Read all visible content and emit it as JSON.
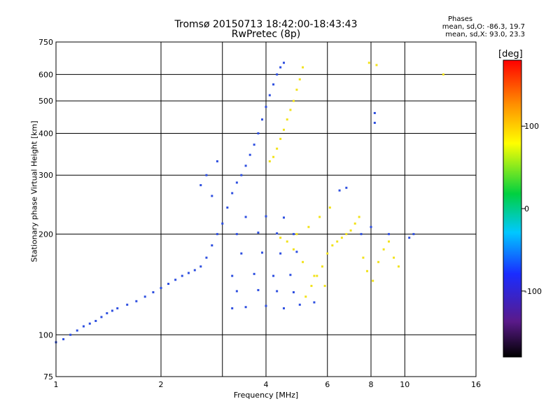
{
  "header": {
    "title": "Tromsø 20150713 18:42:00-18:43:43",
    "subtitle": "RwPretec (8p)",
    "stats_heading": "Phases",
    "stats_o": "mean, sd,O: -86.3, 19.7",
    "stats_x": "mean, sd,X:  93.0, 23.3"
  },
  "colorbar": {
    "title": "[deg]",
    "ticks": [
      100,
      0,
      -100
    ],
    "range": [
      -180,
      180
    ],
    "scale": "rainbow (black-purple-blue-cyan-green-yellow-orange-red)"
  },
  "chart_data": {
    "type": "scatter",
    "title": "Tromsø 20150713 18:42:00-18:43:43",
    "subtitle": "RwPretec (8p)",
    "xlabel": "Frequency [MHz]",
    "ylabel": "Stationary phase Virtual Height [km]",
    "xscale": "log",
    "yscale": "log",
    "xlim": [
      1,
      16
    ],
    "ylim": [
      75,
      750
    ],
    "x_ticks": [
      1,
      2,
      4,
      6,
      8,
      10,
      16
    ],
    "y_ticks": [
      75,
      100,
      200,
      300,
      400,
      500,
      600,
      750
    ],
    "x_grid": [
      2,
      3,
      4,
      6,
      8,
      10
    ],
    "y_grid": [
      100,
      200,
      300,
      400,
      500,
      600
    ],
    "color_variable": "phase [deg]",
    "series": [
      {
        "name": "O",
        "color": "#2e4fe0",
        "points": [
          [
            1.0,
            95
          ],
          [
            1.05,
            97
          ],
          [
            1.1,
            100
          ],
          [
            1.15,
            103
          ],
          [
            1.2,
            106
          ],
          [
            1.25,
            108
          ],
          [
            1.3,
            110
          ],
          [
            1.35,
            113
          ],
          [
            1.4,
            116
          ],
          [
            1.45,
            118
          ],
          [
            1.5,
            120
          ],
          [
            1.6,
            123
          ],
          [
            1.7,
            126
          ],
          [
            1.8,
            130
          ],
          [
            1.9,
            134
          ],
          [
            2.0,
            138
          ],
          [
            2.1,
            142
          ],
          [
            2.2,
            146
          ],
          [
            2.3,
            150
          ],
          [
            2.4,
            153
          ],
          [
            2.5,
            156
          ],
          [
            2.6,
            160
          ],
          [
            2.7,
            170
          ],
          [
            2.8,
            185
          ],
          [
            2.9,
            200
          ],
          [
            3.0,
            215
          ],
          [
            3.1,
            240
          ],
          [
            3.2,
            265
          ],
          [
            3.3,
            285
          ],
          [
            3.4,
            300
          ],
          [
            3.5,
            320
          ],
          [
            3.6,
            345
          ],
          [
            3.7,
            370
          ],
          [
            3.8,
            400
          ],
          [
            3.9,
            440
          ],
          [
            4.0,
            480
          ],
          [
            4.1,
            520
          ],
          [
            4.2,
            560
          ],
          [
            4.3,
            600
          ],
          [
            4.4,
            630
          ],
          [
            4.5,
            650
          ],
          [
            3.2,
            120
          ],
          [
            3.5,
            121
          ],
          [
            4.0,
            122
          ],
          [
            4.5,
            120
          ],
          [
            5.0,
            123
          ],
          [
            5.5,
            125
          ],
          [
            3.3,
            135
          ],
          [
            3.8,
            136
          ],
          [
            4.3,
            135
          ],
          [
            4.8,
            134
          ],
          [
            3.2,
            150
          ],
          [
            3.7,
            152
          ],
          [
            4.2,
            150
          ],
          [
            4.7,
            151
          ],
          [
            3.4,
            175
          ],
          [
            3.9,
            176
          ],
          [
            4.4,
            175
          ],
          [
            4.9,
            177
          ],
          [
            3.3,
            200
          ],
          [
            3.8,
            202
          ],
          [
            4.3,
            201
          ],
          [
            4.8,
            200
          ],
          [
            3.5,
            225
          ],
          [
            4.0,
            226
          ],
          [
            4.5,
            224
          ],
          [
            6.5,
            270
          ],
          [
            6.8,
            275
          ],
          [
            7.5,
            200
          ],
          [
            8.0,
            210
          ],
          [
            8.2,
            430
          ],
          [
            8.2,
            460
          ],
          [
            9.0,
            200
          ],
          [
            10.3,
            195
          ],
          [
            10.6,
            200
          ],
          [
            2.6,
            280
          ],
          [
            2.7,
            300
          ],
          [
            2.8,
            260
          ],
          [
            2.9,
            330
          ]
        ]
      },
      {
        "name": "X",
        "color": "#f2e21a",
        "points": [
          [
            4.1,
            330
          ],
          [
            4.2,
            340
          ],
          [
            4.3,
            360
          ],
          [
            4.4,
            385
          ],
          [
            4.5,
            410
          ],
          [
            4.6,
            440
          ],
          [
            4.7,
            470
          ],
          [
            4.8,
            500
          ],
          [
            4.9,
            540
          ],
          [
            5.0,
            580
          ],
          [
            5.1,
            630
          ],
          [
            5.2,
            130
          ],
          [
            5.4,
            140
          ],
          [
            5.6,
            150
          ],
          [
            5.8,
            160
          ],
          [
            6.0,
            175
          ],
          [
            6.2,
            185
          ],
          [
            6.4,
            190
          ],
          [
            6.6,
            195
          ],
          [
            6.8,
            200
          ],
          [
            7.0,
            205
          ],
          [
            7.2,
            215
          ],
          [
            7.4,
            225
          ],
          [
            7.6,
            170
          ],
          [
            7.8,
            155
          ],
          [
            8.1,
            145
          ],
          [
            8.4,
            165
          ],
          [
            8.7,
            180
          ],
          [
            9.0,
            190
          ],
          [
            9.3,
            170
          ],
          [
            9.6,
            160
          ],
          [
            4.6,
            190
          ],
          [
            4.9,
            200
          ],
          [
            5.3,
            210
          ],
          [
            5.7,
            225
          ],
          [
            6.1,
            240
          ],
          [
            7.9,
            650
          ],
          [
            8.3,
            640
          ],
          [
            12.9,
            600
          ],
          [
            4.4,
            195
          ],
          [
            4.8,
            180
          ],
          [
            5.1,
            165
          ],
          [
            5.5,
            150
          ],
          [
            5.9,
            140
          ]
        ]
      }
    ]
  }
}
